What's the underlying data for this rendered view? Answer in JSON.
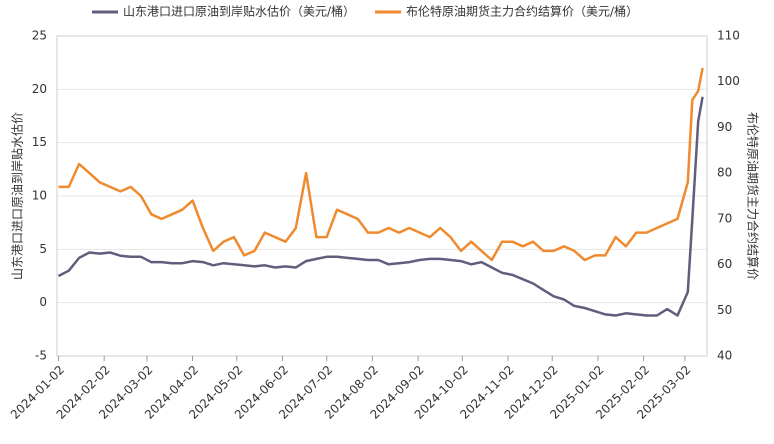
{
  "chart_data": {
    "type": "line",
    "y_label": "山东港口进口原油到岸贴水估价",
    "y2_label": "布伦特原油期货主力合约结算价",
    "x": [
      "2024-01-02",
      "2024-01-09",
      "2024-01-16",
      "2024-01-23",
      "2024-01-30",
      "2024-02-06",
      "2024-02-13",
      "2024-02-20",
      "2024-02-27",
      "2024-03-05",
      "2024-03-12",
      "2024-03-19",
      "2024-03-26",
      "2024-04-02",
      "2024-04-09",
      "2024-04-16",
      "2024-04-23",
      "2024-04-30",
      "2024-05-07",
      "2024-05-14",
      "2024-05-21",
      "2024-05-28",
      "2024-06-04",
      "2024-06-11",
      "2024-06-18",
      "2024-06-25",
      "2024-07-02",
      "2024-07-09",
      "2024-07-16",
      "2024-07-23",
      "2024-07-30",
      "2024-08-06",
      "2024-08-13",
      "2024-08-20",
      "2024-08-27",
      "2024-09-03",
      "2024-09-10",
      "2024-09-17",
      "2024-09-24",
      "2024-10-01",
      "2024-10-08",
      "2024-10-15",
      "2024-10-22",
      "2024-10-29",
      "2024-11-05",
      "2024-11-12",
      "2024-11-19",
      "2024-11-26",
      "2024-12-03",
      "2024-12-10",
      "2024-12-17",
      "2024-12-24",
      "2024-12-31",
      "2025-01-07",
      "2025-01-14",
      "2025-01-21",
      "2025-01-28",
      "2025-02-04",
      "2025-02-11",
      "2025-02-18",
      "2025-02-25",
      "2025-03-04",
      "2025-03-07",
      "2025-03-11",
      "2025-03-14"
    ],
    "series": [
      {
        "name": "山东港口进口原油到岸贴水估价（美元/桶）",
        "color": "#5f5e7d",
        "values": [
          2.5,
          3,
          4.2,
          4.7,
          4.6,
          4.7,
          4.4,
          4.3,
          4.3,
          3.8,
          3.8,
          3.7,
          3.7,
          3.9,
          3.8,
          3.5,
          3.7,
          3.6,
          3.5,
          3.4,
          3.5,
          3.3,
          3.4,
          3.3,
          3.9,
          4.1,
          4.3,
          4.3,
          4.2,
          4.1,
          4.0,
          4.0,
          3.6,
          3.7,
          3.8,
          4.0,
          4.1,
          4.1,
          4.0,
          3.9,
          3.6,
          3.8,
          3.3,
          2.8,
          2.6,
          2.2,
          1.8,
          1.2,
          0.6,
          0.3,
          -0.3,
          -0.5,
          -0.8,
          -1.1,
          -1.2,
          -1.0,
          -1.1,
          -1.2,
          -1.2,
          -0.6,
          -1.2,
          1.0,
          7.8,
          17,
          19.3
        ]
      },
      {
        "name": "布伦特原油期货主力合约结算价（美元/桶）",
        "color": "#f08a2f",
        "axis": "y2",
        "values": [
          77,
          77,
          82,
          80,
          78,
          77,
          76,
          77,
          75,
          71,
          70,
          71,
          72,
          74,
          68,
          63,
          65,
          66,
          62,
          63,
          67,
          66,
          65,
          68,
          80,
          66,
          66,
          72,
          71,
          70,
          67,
          67,
          68,
          67,
          68,
          67,
          66,
          68,
          66,
          63,
          65,
          63,
          61,
          65,
          65,
          64,
          65,
          63,
          63,
          64,
          63,
          61,
          62,
          62,
          66,
          64,
          67,
          67,
          68,
          69,
          70,
          78,
          96,
          98,
          103
        ]
      }
    ],
    "xlim": [
      "2024-01-01",
      "2025-03-17"
    ],
    "xticks": [
      "2024-01-02",
      "2024-02-02",
      "2024-03-02",
      "2024-04-02",
      "2024-05-02",
      "2024-06-02",
      "2024-07-02",
      "2024-08-02",
      "2024-09-02",
      "2024-10-02",
      "2024-11-02",
      "2024-12-02",
      "2025-01-02",
      "2025-02-02",
      "2025-03-02"
    ],
    "ylim": [
      -5,
      25
    ],
    "yticks": [
      -5,
      0,
      5,
      10,
      15,
      20,
      25
    ],
    "y2lim": [
      40,
      110
    ],
    "y2ticks": [
      40,
      50,
      60,
      70,
      80,
      90,
      100,
      110
    ],
    "grid": true,
    "legend": "top"
  }
}
